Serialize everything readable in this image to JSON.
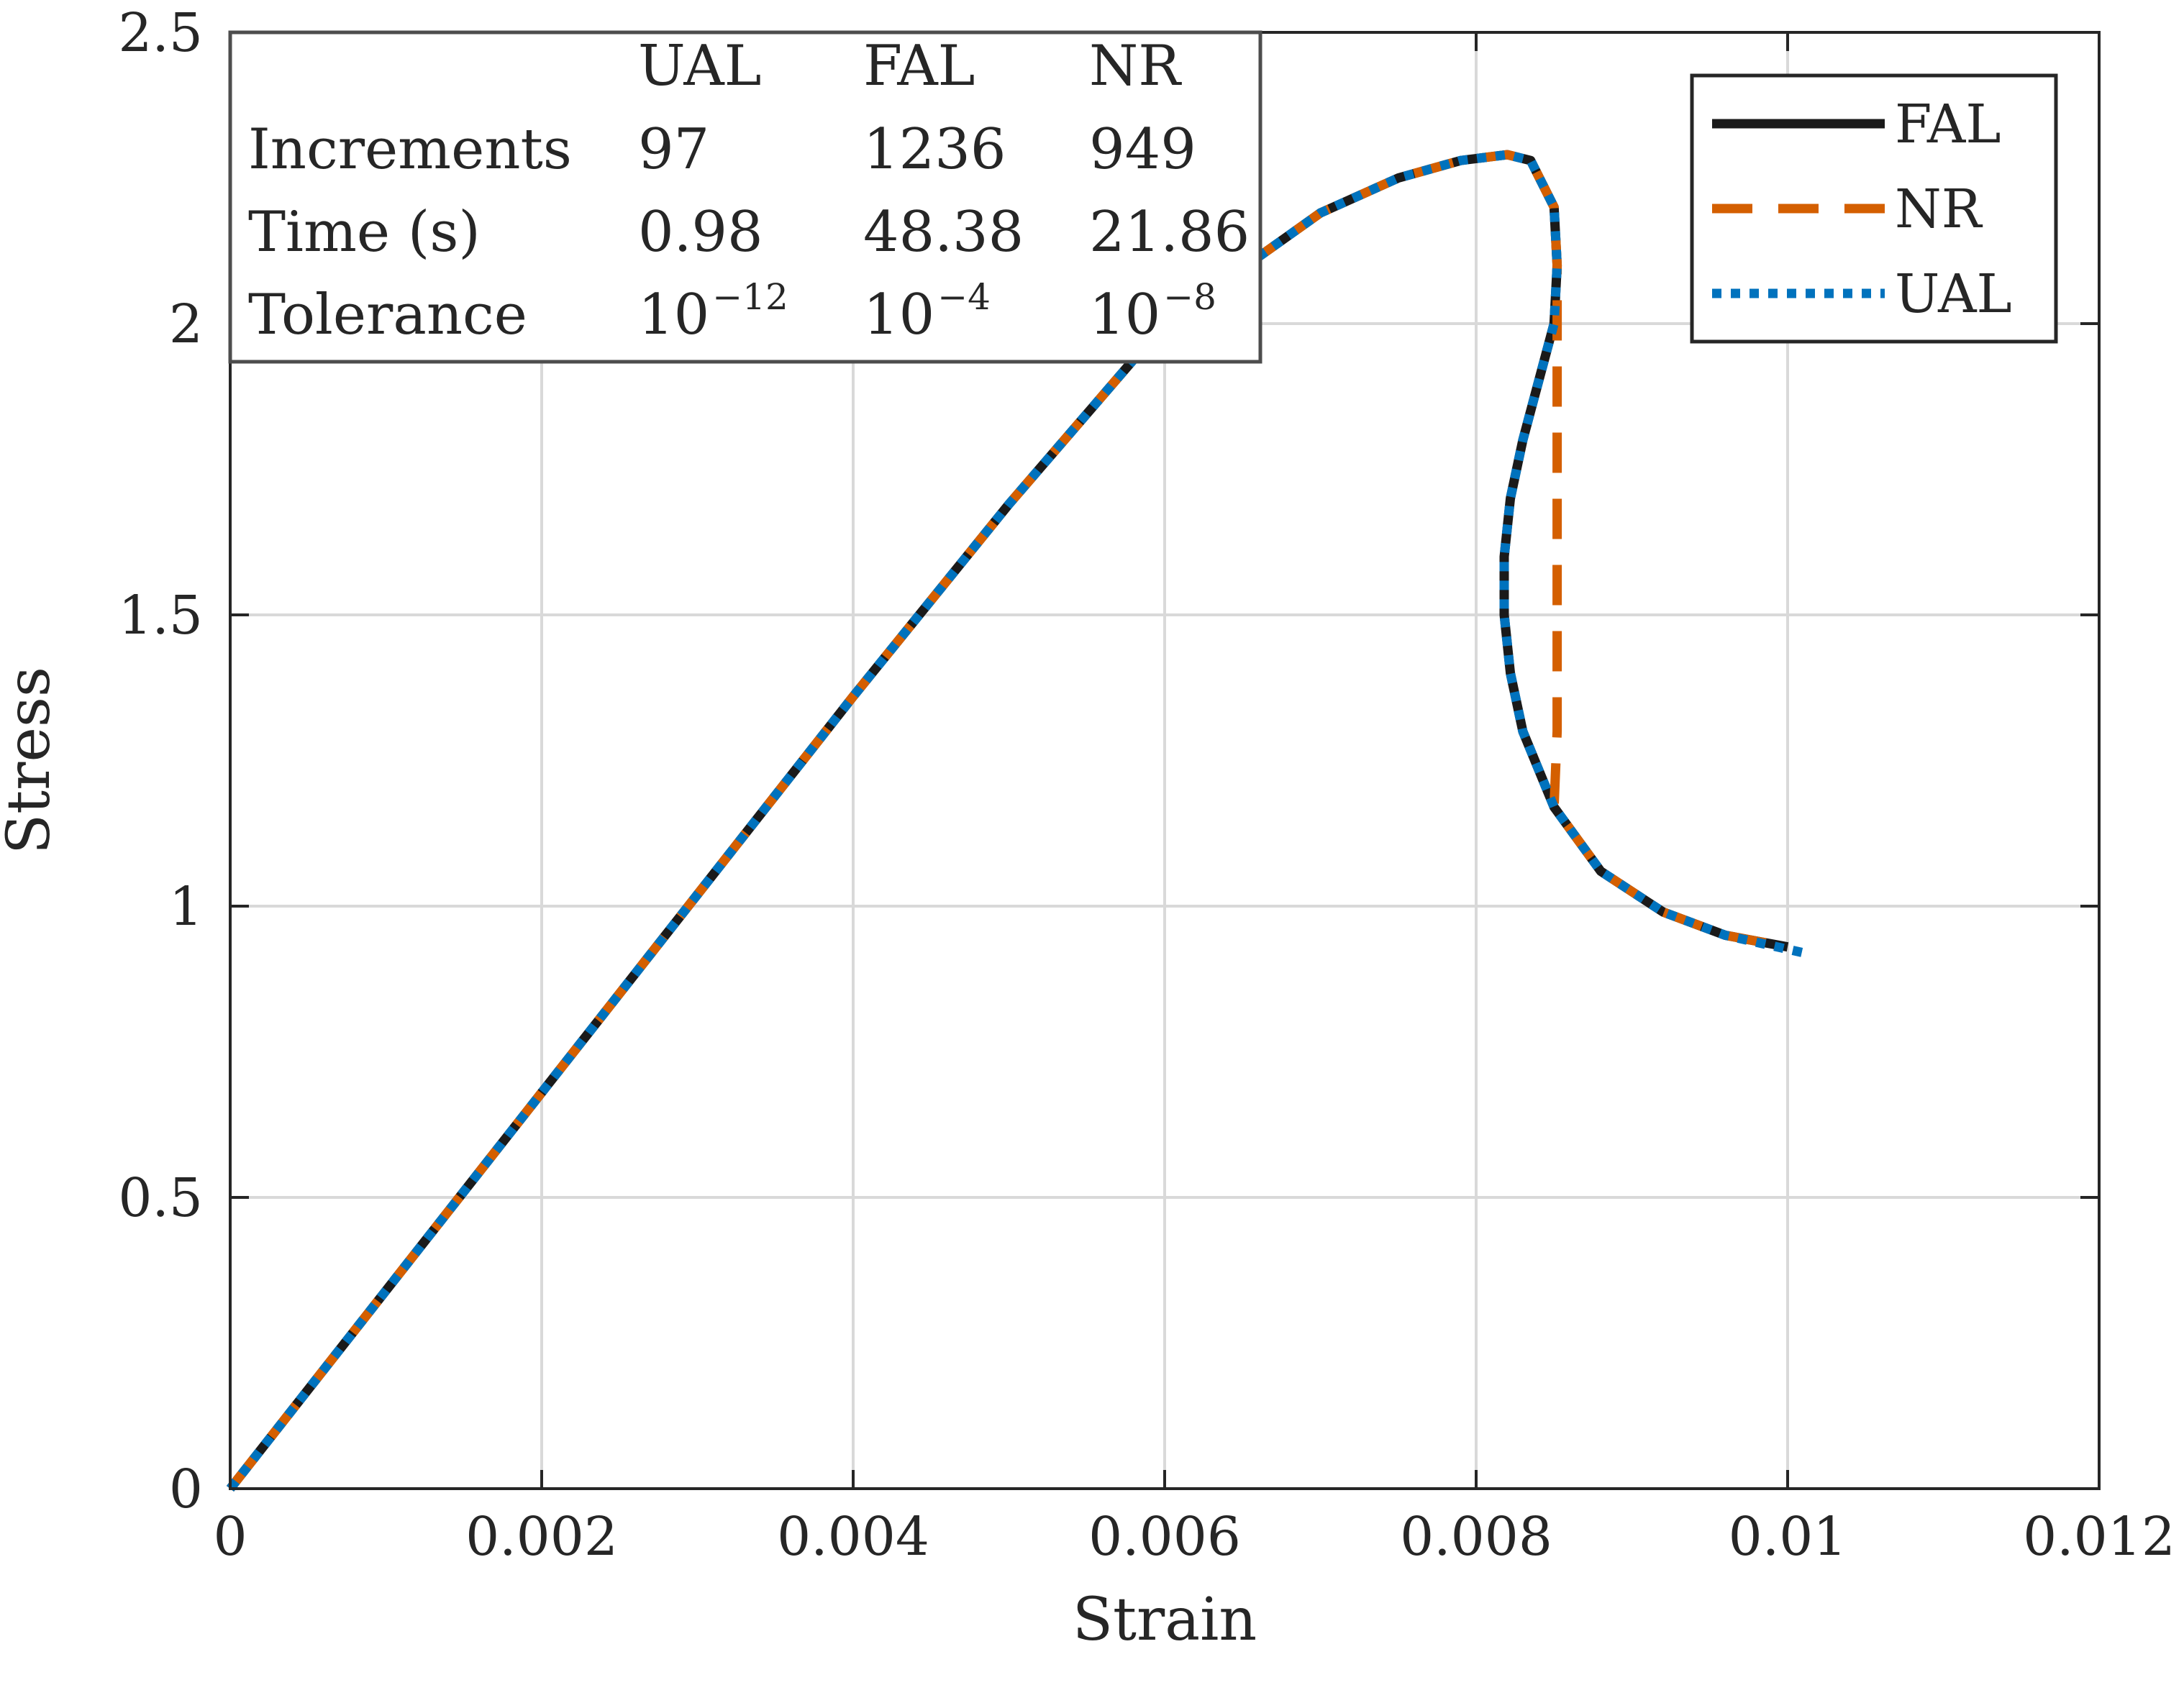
{
  "chart_data": {
    "type": "line",
    "xlabel": "Strain",
    "ylabel": "Stress",
    "xlim": [
      0,
      0.012
    ],
    "ylim": [
      0,
      2.5
    ],
    "x_ticks": [
      0,
      0.002,
      0.004,
      0.006,
      0.008,
      0.01,
      0.012
    ],
    "x_tick_labels": [
      "0",
      "0.002",
      "0.004",
      "0.006",
      "0.008",
      "0.01",
      "0.012"
    ],
    "y_ticks": [
      0,
      0.5,
      1,
      1.5,
      2,
      2.5
    ],
    "y_tick_labels": [
      "0",
      "0.5",
      "1",
      "1.5",
      "2",
      "2.5"
    ],
    "grid": true,
    "legend_position": "top-right",
    "series": [
      {
        "name": "FAL",
        "color": "#1a1a1a",
        "style": "solid",
        "x": [
          0,
          0.001,
          0.002,
          0.003,
          0.004,
          0.005,
          0.006,
          0.007,
          0.0075,
          0.0079,
          0.0082,
          0.00835,
          0.0085,
          0.00852,
          0.0085,
          0.0084,
          0.0083,
          0.00822,
          0.00818,
          0.00818,
          0.00822,
          0.0083,
          0.0085,
          0.0088,
          0.0092,
          0.0096,
          0.01
        ],
        "y": [
          0,
          0.34,
          0.68,
          1.02,
          1.36,
          1.69,
          2.0,
          2.19,
          2.25,
          2.28,
          2.29,
          2.28,
          2.2,
          2.1,
          2.0,
          1.9,
          1.8,
          1.7,
          1.6,
          1.5,
          1.4,
          1.3,
          1.17,
          1.06,
          0.99,
          0.95,
          0.93
        ]
      },
      {
        "name": "NR",
        "color": "#d45f00",
        "style": "dashed",
        "x": [
          0,
          0.001,
          0.002,
          0.003,
          0.004,
          0.005,
          0.006,
          0.007,
          0.0075,
          0.0079,
          0.0082,
          0.00835,
          0.0085,
          0.00852,
          0.00852,
          0.00852,
          0.00852,
          0.00852,
          0.00852,
          0.00852,
          0.00852,
          0.00852,
          0.0085,
          0.0088,
          0.0092,
          0.0096,
          0.01
        ],
        "y": [
          0,
          0.34,
          0.68,
          1.02,
          1.36,
          1.69,
          2.0,
          2.19,
          2.25,
          2.28,
          2.29,
          2.28,
          2.2,
          2.1,
          2.0,
          1.9,
          1.8,
          1.7,
          1.6,
          1.5,
          1.4,
          1.3,
          1.17,
          1.06,
          0.99,
          0.95,
          0.93
        ]
      },
      {
        "name": "UAL",
        "color": "#0072bd",
        "style": "dotted",
        "x": [
          0,
          0.001,
          0.002,
          0.003,
          0.004,
          0.005,
          0.006,
          0.007,
          0.0075,
          0.0079,
          0.0082,
          0.00835,
          0.0085,
          0.00852,
          0.0085,
          0.0084,
          0.0083,
          0.00822,
          0.00818,
          0.00818,
          0.00822,
          0.0083,
          0.0085,
          0.0088,
          0.0092,
          0.0096,
          0.0101
        ],
        "y": [
          0,
          0.34,
          0.68,
          1.02,
          1.36,
          1.69,
          2.0,
          2.19,
          2.25,
          2.28,
          2.29,
          2.28,
          2.2,
          2.1,
          2.0,
          1.9,
          1.8,
          1.7,
          1.6,
          1.5,
          1.4,
          1.3,
          1.17,
          1.06,
          0.99,
          0.95,
          0.92
        ]
      }
    ],
    "table": {
      "columns": [
        "",
        "UAL",
        "FAL",
        "NR"
      ],
      "rows": [
        {
          "label": "Increments",
          "cells": [
            {
              "base": "97"
            },
            {
              "base": "1236"
            },
            {
              "base": "949"
            }
          ]
        },
        {
          "label": "Time (s)",
          "cells": [
            {
              "base": "0.98"
            },
            {
              "base": "48.38"
            },
            {
              "base": "21.86"
            }
          ]
        },
        {
          "label": "Tolerance",
          "cells": [
            {
              "base": "10",
              "exp": "−12"
            },
            {
              "base": "10",
              "exp": "−4"
            },
            {
              "base": "10",
              "exp": "−8"
            }
          ]
        }
      ]
    }
  }
}
